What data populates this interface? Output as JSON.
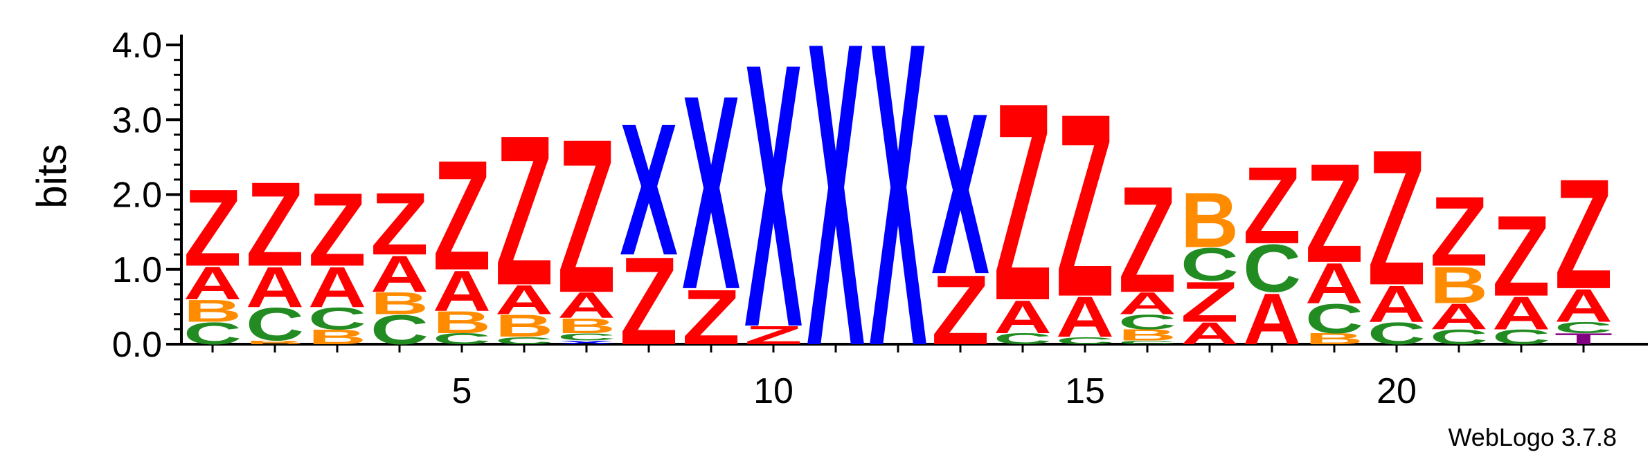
{
  "chart_data": {
    "type": "sequence-logo",
    "ylabel": "bits",
    "ylim": [
      0,
      4.0
    ],
    "y_ticks": [
      "0.0",
      "1.0",
      "2.0",
      "3.0",
      "4.0"
    ],
    "x_tick_labels": [
      {
        "pos": 5,
        "label": "5"
      },
      {
        "pos": 10,
        "label": "10"
      },
      {
        "pos": 15,
        "label": "15"
      },
      {
        "pos": 20,
        "label": "20"
      }
    ],
    "credit": "WebLogo 3.7.8",
    "colors": {
      "Z": "#ff0000",
      "A": "#ff0000",
      "X": "#0000ff",
      "C": "#228b22",
      "B": "#ff8c00",
      "T": "#800080"
    },
    "positions": [
      {
        "pos": 1,
        "stack": [
          [
            "C",
            0.3
          ],
          [
            "B",
            0.3
          ],
          [
            "A",
            0.45
          ],
          [
            "Z",
            1.05
          ]
        ]
      },
      {
        "pos": 2,
        "stack": [
          [
            "B",
            0.05
          ],
          [
            "C",
            0.45
          ],
          [
            "A",
            0.55
          ],
          [
            "Z",
            1.15
          ]
        ]
      },
      {
        "pos": 3,
        "stack": [
          [
            "B",
            0.2
          ],
          [
            "C",
            0.3
          ],
          [
            "A",
            0.55
          ],
          [
            "Z",
            1.0
          ]
        ]
      },
      {
        "pos": 4,
        "stack": [
          [
            "C",
            0.4
          ],
          [
            "B",
            0.3
          ],
          [
            "A",
            0.5
          ],
          [
            "Z",
            0.85
          ]
        ]
      },
      {
        "pos": 5,
        "stack": [
          [
            "C",
            0.15
          ],
          [
            "B",
            0.3
          ],
          [
            "A",
            0.55
          ],
          [
            "Z",
            1.5
          ]
        ]
      },
      {
        "pos": 6,
        "stack": [
          [
            "C",
            0.1
          ],
          [
            "B",
            0.3
          ],
          [
            "A",
            0.4
          ],
          [
            "Z",
            2.05
          ]
        ]
      },
      {
        "pos": 7,
        "stack": [
          [
            "X",
            0.05
          ],
          [
            "C",
            0.1
          ],
          [
            "B",
            0.2
          ],
          [
            "A",
            0.35
          ],
          [
            "Z",
            2.1
          ]
        ]
      },
      {
        "pos": 8,
        "stack": [
          [
            "Z",
            1.2
          ],
          [
            "X",
            1.8
          ]
        ]
      },
      {
        "pos": 9,
        "stack": [
          [
            "Z",
            0.75
          ],
          [
            "X",
            2.65
          ]
        ]
      },
      {
        "pos": 10,
        "stack": [
          [
            "Z",
            0.25
          ],
          [
            "X",
            3.6
          ]
        ]
      },
      {
        "pos": 11,
        "stack": [
          [
            "X",
            4.15
          ]
        ]
      },
      {
        "pos": 12,
        "stack": [
          [
            "X",
            4.15
          ]
        ]
      },
      {
        "pos": 13,
        "stack": [
          [
            "Z",
            0.95
          ],
          [
            "X",
            2.2
          ]
        ]
      },
      {
        "pos": 14,
        "stack": [
          [
            "C",
            0.15
          ],
          [
            "A",
            0.45
          ],
          [
            "Z",
            2.7
          ]
        ]
      },
      {
        "pos": 15,
        "stack": [
          [
            "C",
            0.1
          ],
          [
            "A",
            0.55
          ],
          [
            "Z",
            2.5
          ]
        ]
      },
      {
        "pos": 16,
        "stack": [
          [
            "C",
            0.05
          ],
          [
            "B",
            0.15
          ],
          [
            "C",
            0.2
          ],
          [
            "A",
            0.3
          ],
          [
            "Z",
            1.45
          ]
        ]
      },
      {
        "pos": 17,
        "stack": [
          [
            "A",
            0.3
          ],
          [
            "Z",
            0.55
          ],
          [
            "C",
            0.45
          ],
          [
            "B",
            0.75
          ]
        ]
      },
      {
        "pos": 18,
        "stack": [
          [
            "A",
            0.7
          ],
          [
            "C",
            0.65
          ],
          [
            "Z",
            1.05
          ]
        ]
      },
      {
        "pos": 19,
        "stack": [
          [
            "B",
            0.15
          ],
          [
            "C",
            0.4
          ],
          [
            "A",
            0.55
          ],
          [
            "Z",
            1.35
          ]
        ]
      },
      {
        "pos": 20,
        "stack": [
          [
            "C",
            0.3
          ],
          [
            "A",
            0.5
          ],
          [
            "Z",
            1.85
          ]
        ]
      },
      {
        "pos": 21,
        "stack": [
          [
            "C",
            0.2
          ],
          [
            "A",
            0.35
          ],
          [
            "B",
            0.5
          ],
          [
            "Z",
            0.95
          ]
        ]
      },
      {
        "pos": 22,
        "stack": [
          [
            "C",
            0.2
          ],
          [
            "A",
            0.45
          ],
          [
            "Z",
            1.1
          ]
        ]
      },
      {
        "pos": 23,
        "stack": [
          [
            "T",
            0.15
          ],
          [
            "C",
            0.15
          ],
          [
            "A",
            0.45
          ],
          [
            "Z",
            1.5
          ]
        ]
      }
    ]
  }
}
